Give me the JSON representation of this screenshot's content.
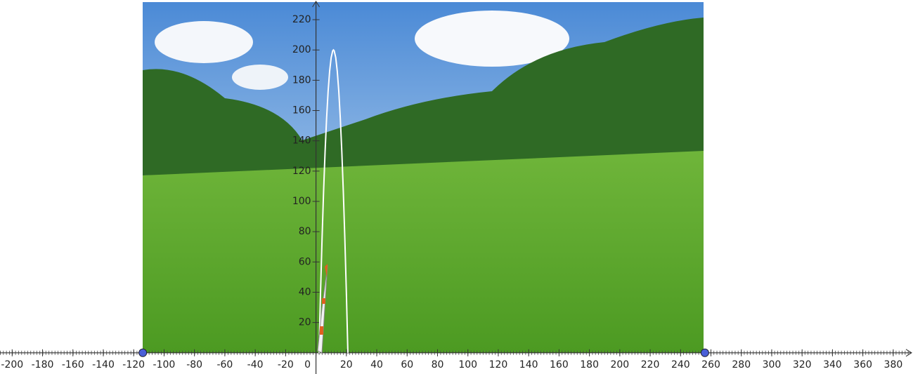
{
  "chart_data": {
    "type": "line",
    "xlim": [
      -208,
      393
    ],
    "ylim": [
      -14,
      233
    ],
    "xticks": [
      -200,
      -180,
      -160,
      -140,
      -120,
      -100,
      -80,
      -60,
      -40,
      -20,
      0,
      20,
      40,
      60,
      80,
      100,
      120,
      140,
      160,
      180,
      200,
      220,
      240,
      260,
      280,
      300,
      320,
      340,
      360,
      380
    ],
    "yticks": [
      20,
      40,
      60,
      80,
      100,
      120,
      140,
      160,
      180,
      200,
      220
    ],
    "series": [
      {
        "color": "#ffffff",
        "x": [
          2,
          3,
          4,
          5,
          6,
          7,
          8,
          9,
          10,
          11,
          11.5,
          12,
          13,
          14,
          15,
          16,
          17,
          18,
          19,
          20,
          21
        ],
        "values": [
          0,
          39.9,
          75.3,
          106.4,
          133,
          155.1,
          172.9,
          186.1,
          195,
          199.4,
          200,
          199.4,
          195,
          186.1,
          172.9,
          155.1,
          133,
          106.4,
          75.3,
          39.9,
          0
        ]
      }
    ],
    "points": {
      "color": "#4a5fd8",
      "x": [
        -114,
        256
      ],
      "values": [
        0,
        0
      ]
    }
  }
}
